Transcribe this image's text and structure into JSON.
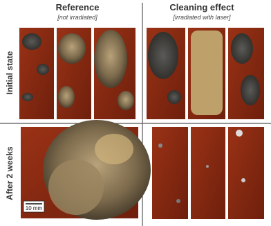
{
  "header": {
    "reference": {
      "title": "Reference",
      "subtitle": "[not irradiated]"
    },
    "cleaning": {
      "title": "Cleaning effect",
      "subtitle": "[irradiated with laser]"
    }
  },
  "rows": [
    "Initial state",
    "After 2 weeks"
  ],
  "scale_bar": "10 mm"
}
